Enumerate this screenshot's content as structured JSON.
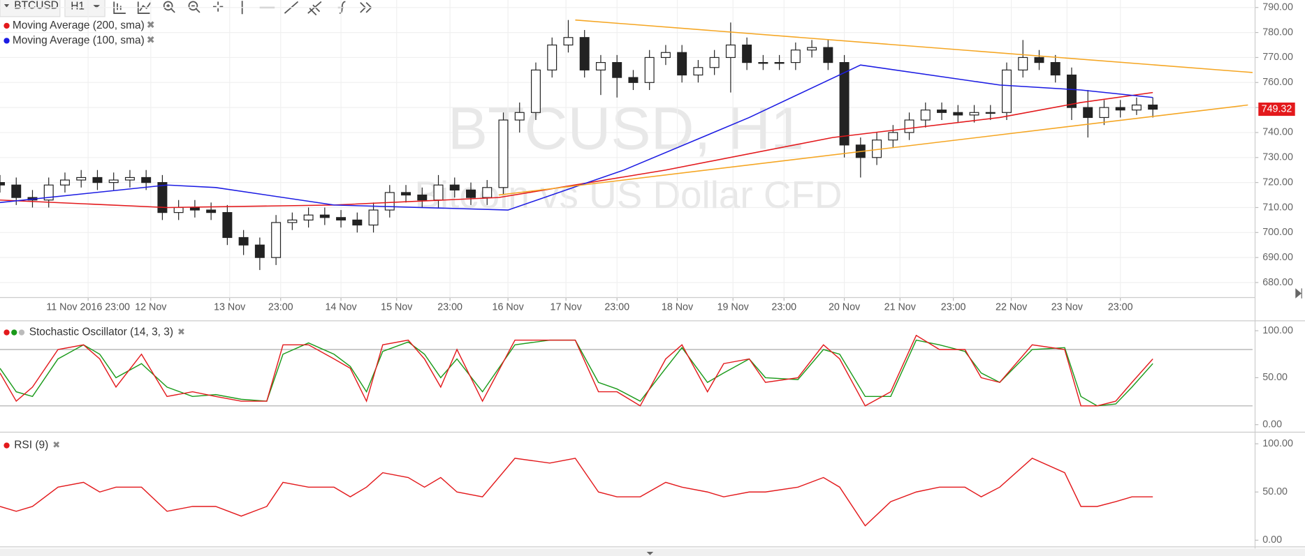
{
  "toolbar": {
    "symbol": "BTCUSD",
    "timeframe": "H1"
  },
  "chart_data": [
    {
      "type": "candlestick",
      "watermark_title": "BTCUSD, H1",
      "watermark_subtitle": "Bitcoin vs US Dollar CFD",
      "x": [
        0,
        7,
        14,
        21,
        28,
        35,
        42,
        49,
        56,
        63,
        70,
        77,
        84,
        91,
        98,
        105,
        112,
        119,
        126,
        133,
        140,
        147,
        154,
        161,
        168,
        175,
        182,
        189,
        196,
        203,
        210,
        217,
        224,
        231,
        238,
        245,
        252,
        259,
        266,
        273,
        280,
        287,
        294,
        301,
        308,
        315,
        322,
        329,
        336,
        343,
        350,
        357,
        364,
        371,
        378,
        385,
        392,
        399,
        406,
        413,
        420,
        427,
        434,
        441,
        448,
        455,
        462,
        469,
        476,
        483,
        490,
        497
      ],
      "open": [
        720,
        719,
        714,
        713,
        719,
        721,
        722,
        720,
        721,
        722,
        720,
        708,
        710,
        709,
        708,
        698,
        695,
        690,
        704,
        705,
        707,
        706,
        705,
        703,
        709,
        716,
        715,
        713,
        719,
        717,
        714,
        718,
        745,
        748,
        765,
        775,
        778,
        765,
        768,
        762,
        760,
        770,
        772,
        763,
        766,
        770,
        775,
        768,
        768,
        768,
        773,
        774,
        768,
        735,
        730,
        737,
        740,
        745,
        749,
        748,
        747,
        748,
        748,
        765,
        770,
        768,
        763,
        750,
        746,
        750,
        749,
        751
      ],
      "high": [
        723,
        722,
        717,
        722,
        724,
        725,
        725,
        724,
        725,
        725,
        723,
        713,
        713,
        712,
        711,
        701,
        698,
        707,
        708,
        710,
        710,
        709,
        708,
        712,
        719,
        719,
        718,
        723,
        722,
        720,
        721,
        748,
        752,
        768,
        778,
        785,
        781,
        771,
        771,
        765,
        773,
        775,
        775,
        769,
        773,
        784,
        778,
        771,
        771,
        776,
        777,
        777,
        771,
        738,
        740,
        743,
        748,
        752,
        752,
        751,
        751,
        751,
        768,
        777,
        773,
        771,
        766,
        757,
        753,
        753,
        754,
        754
      ],
      "low": [
        716,
        711,
        710,
        710,
        716,
        718,
        717,
        717,
        718,
        717,
        705,
        705,
        706,
        705,
        695,
        691,
        685,
        687,
        701,
        702,
        703,
        702,
        700,
        700,
        706,
        712,
        710,
        710,
        714,
        711,
        711,
        715,
        740,
        745,
        762,
        772,
        762,
        755,
        754,
        757,
        757,
        767,
        760,
        760,
        763,
        756,
        765,
        765,
        765,
        765,
        770,
        765,
        730,
        722,
        727,
        734,
        737,
        742,
        745,
        744,
        744,
        745,
        745,
        762,
        765,
        760,
        745,
        738,
        743,
        746,
        747,
        746
      ],
      "close": [
        719,
        714,
        713,
        719,
        721,
        722,
        720,
        721,
        722,
        720,
        708,
        710,
        709,
        708,
        698,
        695,
        690,
        704,
        705,
        707,
        706,
        705,
        703,
        709,
        716,
        715,
        713,
        719,
        717,
        714,
        718,
        745,
        748,
        765,
        775,
        778,
        765,
        768,
        762,
        760,
        770,
        772,
        763,
        766,
        770,
        775,
        768,
        768,
        768,
        773,
        774,
        768,
        735,
        730,
        737,
        740,
        745,
        749,
        748,
        747,
        748,
        748,
        765,
        770,
        768,
        763,
        750,
        746,
        750,
        749,
        751,
        749.32
      ],
      "series": [
        {
          "name": "Moving Average (200, sma)",
          "color": "#e3191c",
          "x": [
            0,
            72,
            144,
            215,
            287,
            359,
            431,
            466,
            497
          ],
          "values": [
            713,
            710,
            711,
            714,
            725,
            738,
            746,
            752,
            756
          ]
        },
        {
          "name": "Moving Average (100, sma)",
          "color": "#1c1ce3",
          "x": [
            0,
            72,
            93,
            144,
            219,
            269,
            323,
            371,
            431,
            466,
            497
          ],
          "values": [
            712,
            719,
            718,
            711,
            709,
            725,
            746,
            767,
            759,
            757,
            754
          ]
        }
      ],
      "trendlines": [
        {
          "color": "#f5a623",
          "x": [
            248,
            540
          ],
          "values": [
            785,
            764
          ]
        },
        {
          "color": "#f5a623",
          "x": [
            215,
            538
          ],
          "values": [
            715,
            751
          ]
        }
      ],
      "last_price": 749.32,
      "last_price_color": "#e3191c",
      "xlim": [
        0,
        540
      ],
      "xticks": [
        {
          "value": 38,
          "label": "11 Nov 2016 23:00"
        },
        {
          "value": 65,
          "label": "12 Nov"
        },
        {
          "value": 99,
          "label": "13 Nov"
        },
        {
          "value": 121,
          "label": "23:00"
        },
        {
          "value": 147,
          "label": "14 Nov"
        },
        {
          "value": 171,
          "label": "15 Nov"
        },
        {
          "value": 194,
          "label": "23:00"
        },
        {
          "value": 219,
          "label": "16 Nov"
        },
        {
          "value": 244,
          "label": "17 Nov"
        },
        {
          "value": 266,
          "label": "23:00"
        },
        {
          "value": 292,
          "label": "18 Nov"
        },
        {
          "value": 316,
          "label": "19 Nov"
        },
        {
          "value": 338,
          "label": "23:00"
        },
        {
          "value": 364,
          "label": "20 Nov"
        },
        {
          "value": 388,
          "label": "21 Nov"
        },
        {
          "value": 411,
          "label": "23:00"
        },
        {
          "value": 436,
          "label": "22 Nov"
        },
        {
          "value": 460,
          "label": "23 Nov"
        },
        {
          "value": 483,
          "label": "23:00"
        }
      ],
      "ylim": [
        674,
        793
      ],
      "yticks": [
        {
          "value": 680,
          "label": "680.00"
        },
        {
          "value": 690,
          "label": "690.00"
        },
        {
          "value": 700,
          "label": "700.00"
        },
        {
          "value": 710,
          "label": "710.00"
        },
        {
          "value": 720,
          "label": "720.00"
        },
        {
          "value": 730,
          "label": "730.00"
        },
        {
          "value": 740,
          "label": "740.00"
        },
        {
          "value": 750,
          "label": "750.00"
        },
        {
          "value": 760,
          "label": "760.00"
        },
        {
          "value": 770,
          "label": "770.00"
        },
        {
          "value": 780,
          "label": "780.00"
        },
        {
          "value": 790,
          "label": "790.00"
        }
      ],
      "grid": true
    },
    {
      "type": "line",
      "title": "Stochastic Oscillator (14, 3, 3)",
      "legend_dots": [
        "#e3191c",
        "#1a9a1a",
        "#bbbbbb"
      ],
      "x": [
        0,
        7,
        14,
        25,
        36,
        43,
        50,
        61,
        72,
        83,
        93,
        104,
        115,
        122,
        133,
        144,
        151,
        158,
        165,
        176,
        183,
        190,
        197,
        208,
        222,
        237,
        248,
        258,
        266,
        276,
        287,
        294,
        305,
        312,
        323,
        330,
        344,
        355,
        362,
        373,
        384,
        395,
        405,
        416,
        423,
        431,
        445,
        459,
        466,
        473,
        481,
        488,
        497
      ],
      "series": [
        {
          "color": "#1a9a1a",
          "values": [
            60,
            35,
            30,
            70,
            85,
            75,
            50,
            65,
            40,
            30,
            32,
            27,
            25,
            75,
            87,
            75,
            62,
            35,
            78,
            88,
            75,
            50,
            70,
            35,
            85,
            90,
            90,
            45,
            38,
            25,
            60,
            82,
            45,
            55,
            70,
            50,
            48,
            80,
            75,
            30,
            30,
            90,
            85,
            78,
            55,
            45,
            80,
            82,
            30,
            20,
            22,
            40,
            65
          ]
        },
        {
          "color": "#e3191c",
          "values": [
            55,
            25,
            40,
            80,
            85,
            70,
            40,
            75,
            30,
            35,
            30,
            25,
            25,
            85,
            85,
            70,
            60,
            25,
            85,
            90,
            70,
            40,
            80,
            25,
            90,
            90,
            90,
            35,
            35,
            20,
            70,
            85,
            35,
            65,
            70,
            45,
            50,
            85,
            70,
            20,
            35,
            95,
            80,
            80,
            50,
            45,
            85,
            80,
            20,
            20,
            25,
            45,
            70
          ]
        }
      ],
      "levels": [
        80,
        20
      ],
      "xlim": [
        0,
        540
      ],
      "ylim": [
        -8,
        108.8
      ],
      "yticks": [
        {
          "value": 0,
          "label": "0.00"
        },
        {
          "value": 50,
          "label": "50.00"
        },
        {
          "value": 100,
          "label": "100.00"
        }
      ]
    },
    {
      "type": "line",
      "title": "RSI (9)",
      "legend_dots": [
        "#e3191c"
      ],
      "x": [
        0,
        7,
        14,
        25,
        36,
        43,
        50,
        61,
        72,
        83,
        93,
        104,
        115,
        122,
        133,
        144,
        151,
        158,
        165,
        176,
        183,
        190,
        197,
        208,
        222,
        237,
        248,
        258,
        266,
        276,
        287,
        294,
        305,
        312,
        323,
        330,
        344,
        355,
        362,
        373,
        384,
        395,
        405,
        416,
        423,
        431,
        445,
        459,
        466,
        473,
        481,
        488,
        497
      ],
      "series": [
        {
          "color": "#e3191c",
          "values": [
            35,
            30,
            35,
            55,
            60,
            50,
            55,
            55,
            30,
            35,
            35,
            25,
            35,
            60,
            55,
            55,
            45,
            55,
            70,
            65,
            55,
            65,
            50,
            45,
            85,
            80,
            85,
            50,
            45,
            45,
            60,
            55,
            50,
            45,
            50,
            50,
            55,
            65,
            55,
            15,
            40,
            50,
            55,
            55,
            45,
            55,
            85,
            70,
            35,
            35,
            40,
            45,
            45
          ]
        }
      ],
      "xlim": [
        0,
        540
      ],
      "ylim": [
        -6.9,
        108.6
      ],
      "yticks": [
        {
          "value": 0,
          "label": "0.00"
        },
        {
          "value": 50,
          "label": "50.00"
        },
        {
          "value": 100,
          "label": "100.00"
        }
      ]
    }
  ]
}
